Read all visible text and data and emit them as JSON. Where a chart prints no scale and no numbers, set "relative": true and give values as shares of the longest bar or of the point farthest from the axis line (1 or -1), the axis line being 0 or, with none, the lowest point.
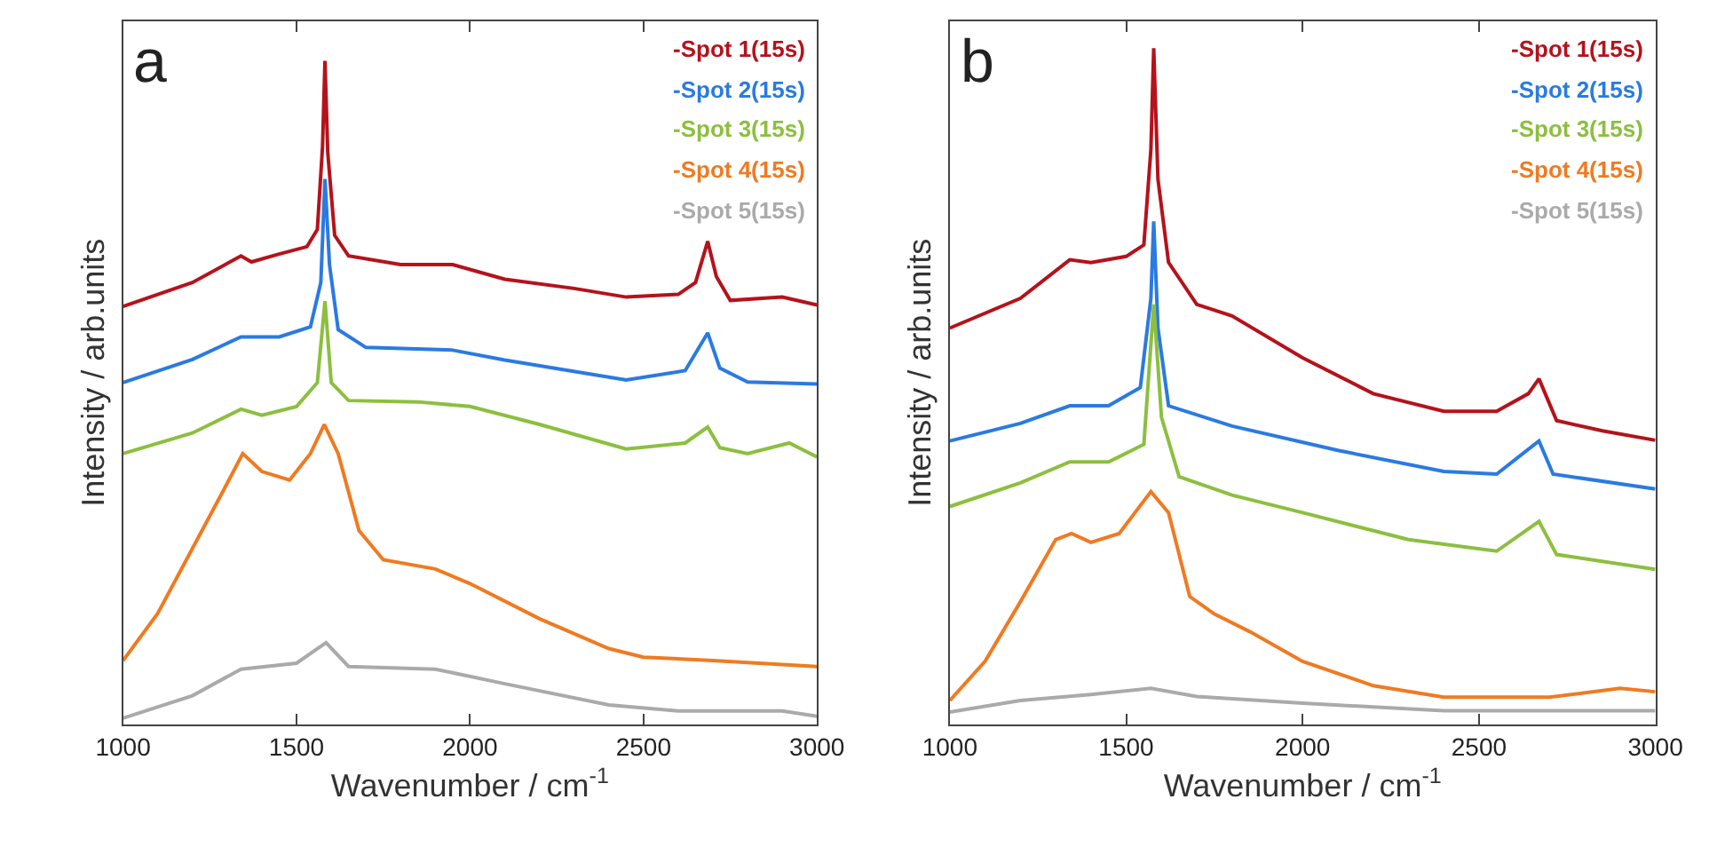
{
  "chart_data": [
    {
      "type": "line",
      "relative": true,
      "xlabel": "Wavenumber / cm$^{-1}$",
      "ylabel": "Intensity / arb.units",
      "annotations": [
        "a"
      ],
      "xlim": [
        1000,
        3000
      ],
      "xticks": [
        1000,
        1500,
        2000,
        2500,
        3000
      ],
      "tick_labels": "x",
      "legend": "top right",
      "marker": "none",
      "line_style": "solid",
      "series": [
        {
          "name": "-Spot 1(15s)",
          "color": "#b5121b",
          "x": [
            1000,
            1200,
            1340,
            1370,
            1450,
            1530,
            1560,
            1575,
            1582,
            1590,
            1610,
            1650,
            1800,
            1950,
            2100,
            2300,
            2450,
            2600,
            2650,
            2685,
            2710,
            2750,
            2900,
            3000
          ],
          "values": [
            0.63,
            0.666,
            0.706,
            0.697,
            0.709,
            0.72,
            0.746,
            0.871,
            1.0,
            0.862,
            0.737,
            0.706,
            0.693,
            0.693,
            0.671,
            0.657,
            0.644,
            0.648,
            0.666,
            0.728,
            0.675,
            0.639,
            0.644,
            0.632
          ]
        },
        {
          "name": "-Spot 2(15s)",
          "color": "#2a7ae2",
          "x": [
            1000,
            1200,
            1340,
            1450,
            1540,
            1570,
            1582,
            1595,
            1620,
            1700,
            1950,
            2100,
            2450,
            2620,
            2685,
            2720,
            2800,
            3000
          ],
          "values": [
            0.515,
            0.55,
            0.584,
            0.584,
            0.599,
            0.666,
            0.822,
            0.693,
            0.595,
            0.568,
            0.564,
            0.549,
            0.519,
            0.533,
            0.59,
            0.537,
            0.516,
            0.513
          ]
        },
        {
          "name": "-Spot 3(15s)",
          "color": "#8cbf3f",
          "x": [
            1000,
            1200,
            1340,
            1400,
            1500,
            1560,
            1582,
            1600,
            1650,
            1850,
            2000,
            2200,
            2450,
            2620,
            2685,
            2720,
            2800,
            2920,
            3000
          ],
          "values": [
            0.408,
            0.439,
            0.475,
            0.466,
            0.479,
            0.515,
            0.638,
            0.515,
            0.488,
            0.486,
            0.479,
            0.452,
            0.415,
            0.424,
            0.448,
            0.417,
            0.408,
            0.424,
            0.403
          ]
        },
        {
          "name": "-Spot 4(15s)",
          "color": "#f07a21",
          "x": [
            1000,
            1100,
            1200,
            1300,
            1345,
            1400,
            1480,
            1540,
            1580,
            1620,
            1680,
            1750,
            1900,
            2000,
            2200,
            2400,
            2500,
            2700,
            3000
          ],
          "values": [
            0.096,
            0.167,
            0.265,
            0.363,
            0.408,
            0.381,
            0.368,
            0.408,
            0.452,
            0.408,
            0.292,
            0.248,
            0.234,
            0.212,
            0.159,
            0.114,
            0.101,
            0.096,
            0.087
          ]
        },
        {
          "name": "-Spot 5(15s)",
          "color": "#aaaaaa",
          "x": [
            1000,
            1200,
            1340,
            1500,
            1585,
            1650,
            1900,
            2100,
            2400,
            2600,
            2900,
            3000
          ],
          "values": [
            0.009,
            0.043,
            0.083,
            0.092,
            0.123,
            0.087,
            0.083,
            0.061,
            0.029,
            0.02,
            0.02,
            0.012
          ]
        }
      ]
    },
    {
      "type": "line",
      "relative": true,
      "xlabel": "Wavenumber / cm$^{-1}$",
      "ylabel": "Intensity / arb.units",
      "annotations": [
        "b"
      ],
      "xlim": [
        1000,
        3000
      ],
      "xticks": [
        1000,
        1500,
        2000,
        2500,
        3000
      ],
      "tick_labels": "x",
      "legend": "top right",
      "marker": "none",
      "line_style": "solid",
      "series": [
        {
          "name": "-Spot 1(15s)",
          "color": "#b5121b",
          "x": [
            1000,
            1200,
            1340,
            1400,
            1500,
            1550,
            1570,
            1578,
            1590,
            1620,
            1700,
            1800,
            2000,
            2200,
            2400,
            2550,
            2640,
            2670,
            2720,
            2850,
            3000
          ],
          "values": [
            0.586,
            0.63,
            0.687,
            0.683,
            0.692,
            0.709,
            0.85,
            1.0,
            0.806,
            0.683,
            0.621,
            0.604,
            0.542,
            0.489,
            0.463,
            0.463,
            0.489,
            0.511,
            0.449,
            0.434,
            0.42
          ]
        },
        {
          "name": "-Spot 2(15s)",
          "color": "#2a7ae2",
          "x": [
            1000,
            1200,
            1340,
            1450,
            1540,
            1570,
            1578,
            1590,
            1620,
            1800,
            2100,
            2400,
            2550,
            2670,
            2710,
            3000
          ],
          "values": [
            0.419,
            0.445,
            0.471,
            0.471,
            0.498,
            0.63,
            0.744,
            0.586,
            0.471,
            0.441,
            0.405,
            0.374,
            0.37,
            0.419,
            0.37,
            0.348
          ]
        },
        {
          "name": "-Spot 3(15s)",
          "color": "#8cbf3f",
          "x": [
            1000,
            1200,
            1340,
            1450,
            1550,
            1578,
            1600,
            1650,
            1800,
            2000,
            2300,
            2550,
            2670,
            2720,
            3000
          ],
          "values": [
            0.322,
            0.357,
            0.388,
            0.388,
            0.414,
            0.621,
            0.454,
            0.366,
            0.339,
            0.313,
            0.273,
            0.256,
            0.3,
            0.251,
            0.229
          ]
        },
        {
          "name": "-Spot 4(15s)",
          "color": "#f07a21",
          "x": [
            1000,
            1100,
            1200,
            1300,
            1345,
            1400,
            1480,
            1570,
            1620,
            1680,
            1750,
            1850,
            2000,
            2200,
            2400,
            2700,
            2900,
            3000
          ],
          "values": [
            0.035,
            0.093,
            0.181,
            0.273,
            0.282,
            0.269,
            0.282,
            0.344,
            0.313,
            0.189,
            0.163,
            0.137,
            0.093,
            0.057,
            0.04,
            0.04,
            0.053,
            0.048
          ]
        },
        {
          "name": "-Spot 5(15s)",
          "color": "#aaaaaa",
          "x": [
            1000,
            1200,
            1400,
            1570,
            1700,
            2000,
            2400,
            3000
          ],
          "values": [
            0.018,
            0.035,
            0.044,
            0.053,
            0.041,
            0.031,
            0.02,
            0.02
          ]
        }
      ]
    }
  ]
}
